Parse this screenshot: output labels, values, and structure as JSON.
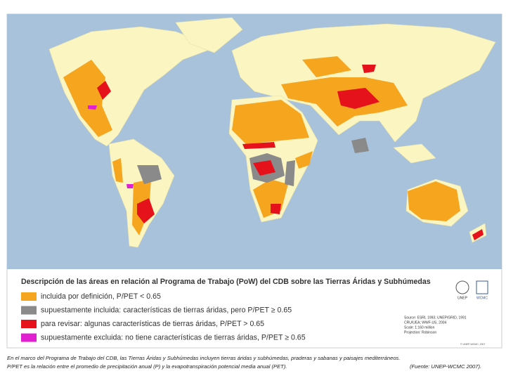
{
  "legend": {
    "title": "Descripción de las áreas en relación al Programa de Trabajo (PoW) del CDB sobre las Tierras Áridas y Subhúmedas",
    "items": [
      {
        "label": "incluida por definición, P/PET < 0.65",
        "color": "#f6a51f"
      },
      {
        "label": "supuestamente incluida: características de tierras áridas, pero P/PET ≥ 0.65",
        "color": "#8a8a8a"
      },
      {
        "label": "para revisar: algunas características de tierras áridas, P/PET > 0.65",
        "color": "#e5121c"
      },
      {
        "label": "supuestamente excluida: no tiene características de tierras áridas, P/PET ≥ 0.65",
        "color": "#e21fd0"
      }
    ]
  },
  "logos": [
    "UNEP",
    "WCMC"
  ],
  "source": [
    "Source: ESRI, 1993; UNEP/GRID, 1991",
    "CRU/UEA; WWF-US, 2004",
    "Scale: 1:160 million",
    "Projection: Robinson"
  ],
  "copyright": "© UNEP-WCMC, 2007",
  "caption": {
    "line1": "En el marco del Programa de Trabajo del CDB, las Tierras Áridas y Subhúmedas incluyen tierras áridas y subhúmedas, praderas y sabanas y paisajes mediterráneos.",
    "line2": "P/PET es la relación entre el promedio de precipitación anual (P) y la evapotranspiración potencial media anual (PET).",
    "credit": "(Fuente: UNEP-WCMC 2007)."
  }
}
